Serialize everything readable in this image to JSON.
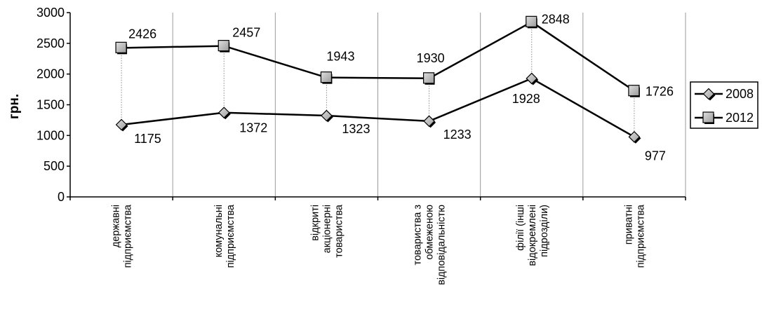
{
  "chart_data": {
    "type": "line",
    "ylabel": "грн.",
    "xlabel": "",
    "title": "",
    "ylim": [
      0,
      3000
    ],
    "yticks": [
      0,
      500,
      1000,
      1500,
      2000,
      2500,
      3000
    ],
    "grid": "vertical",
    "legend_position": "right",
    "categories": [
      [
        "державні",
        "підприємства"
      ],
      [
        "комунальні",
        "підприємства"
      ],
      [
        "відкриті",
        "акціонерні",
        "товариства"
      ],
      [
        "товариства з",
        "обмеженою",
        "відповідальністю"
      ],
      [
        "філії (інші",
        "відокремлені",
        "підрозділи)"
      ],
      [
        "приватні",
        "підприємства"
      ]
    ],
    "series": [
      {
        "name": "2008",
        "marker": "diamond",
        "values": [
          1175,
          1372,
          1323,
          1233,
          1928,
          977
        ]
      },
      {
        "name": "2012",
        "marker": "square",
        "values": [
          2426,
          2457,
          1943,
          1930,
          2848,
          1726
        ]
      }
    ],
    "drop_lines": true
  }
}
